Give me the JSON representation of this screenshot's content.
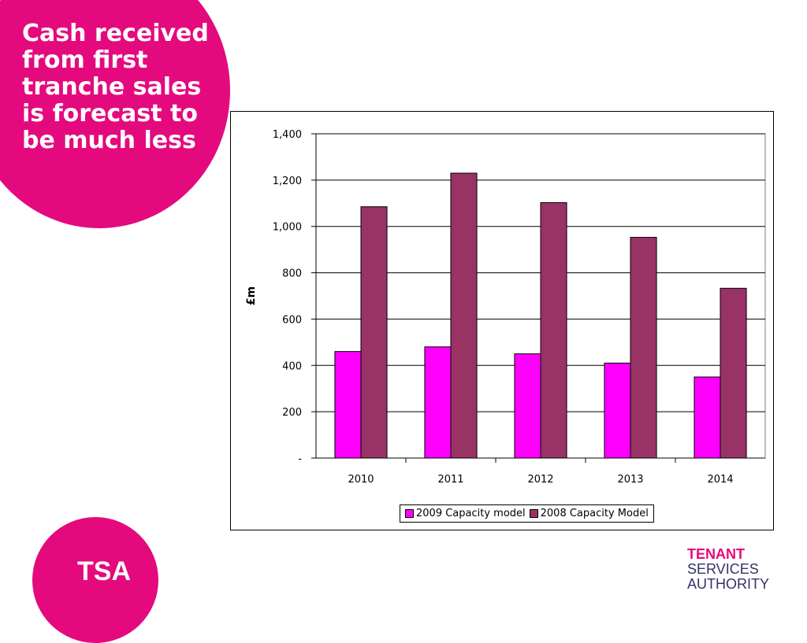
{
  "slide": {
    "title": "Cash received from first tranche sales is forecast to be much less"
  },
  "colors": {
    "brand_pink": "#e5097e",
    "series_2009": "#ff00ff",
    "series_2008": "#993366",
    "org_text": "#333366"
  },
  "logo": {
    "text": "TSA"
  },
  "organisation": {
    "line1": "TENANT",
    "line2": "SERVICES",
    "line3": "AUTHORITY"
  },
  "chart_data": {
    "type": "bar",
    "title": "",
    "xlabel": "",
    "ylabel": "£m",
    "categories": [
      "2010",
      "2011",
      "2012",
      "2013",
      "2014"
    ],
    "ylim": [
      0,
      1400
    ],
    "yticks": [
      0,
      200,
      400,
      600,
      800,
      1000,
      1200,
      1400
    ],
    "ytick_labels": [
      "-",
      "200",
      "400",
      "600",
      "800",
      "1,000",
      "1,200",
      "1,400"
    ],
    "grid": true,
    "legend_position": "bottom",
    "series": [
      {
        "name": "2009 Capacity model",
        "color": "#ff00ff",
        "values": [
          460,
          480,
          450,
          410,
          350
        ]
      },
      {
        "name": "2008 Capacity Model",
        "color": "#993366",
        "values": [
          1085,
          1230,
          1103,
          953,
          733
        ]
      }
    ]
  }
}
